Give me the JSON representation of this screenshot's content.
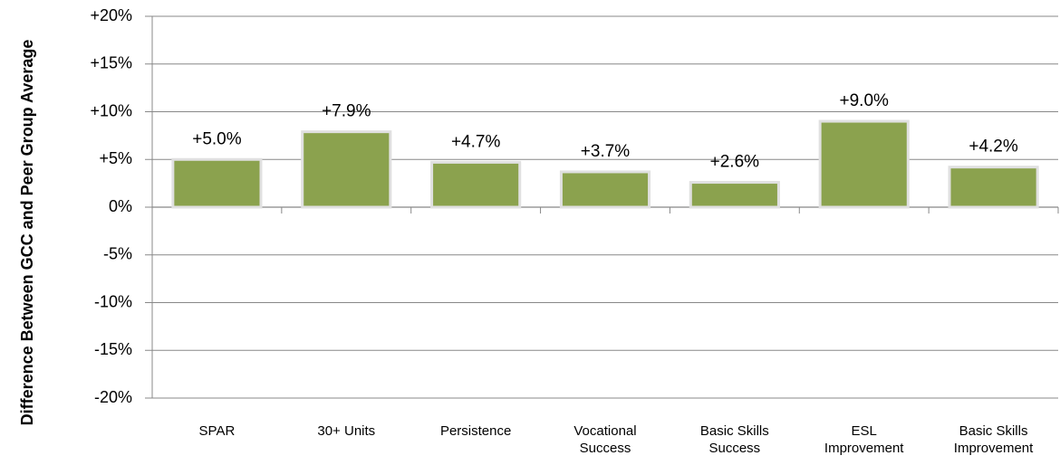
{
  "chart_data": {
    "type": "bar",
    "y_label": "Difference Between GCC and Peer Group Average",
    "categories": [
      "SPAR",
      "30+ Units",
      "Persistence",
      "Vocational Success",
      "Basic Skills Success",
      "ESL Improvement",
      "Basic Skills Improvement"
    ],
    "values": [
      5.0,
      7.9,
      4.7,
      3.7,
      2.6,
      9.0,
      4.2
    ],
    "value_labels": [
      "+5.0%",
      "+7.9%",
      "+4.7%",
      "+3.7%",
      "+2.6%",
      "+9.0%",
      "+4.2%"
    ],
    "color": "#8ba24e",
    "ylim": [
      -20,
      20
    ],
    "yticks": [
      {
        "value": -20,
        "label": "-20%"
      },
      {
        "value": -15,
        "label": "-15%"
      },
      {
        "value": -10,
        "label": "-10%"
      },
      {
        "value": -5,
        "label": "-5%"
      },
      {
        "value": 0,
        "label": "0%"
      },
      {
        "value": 5,
        "label": "+5%"
      },
      {
        "value": 10,
        "label": "+10%"
      },
      {
        "value": 15,
        "label": "+15%"
      },
      {
        "value": 20,
        "label": "+20%"
      }
    ],
    "grid": true
  }
}
